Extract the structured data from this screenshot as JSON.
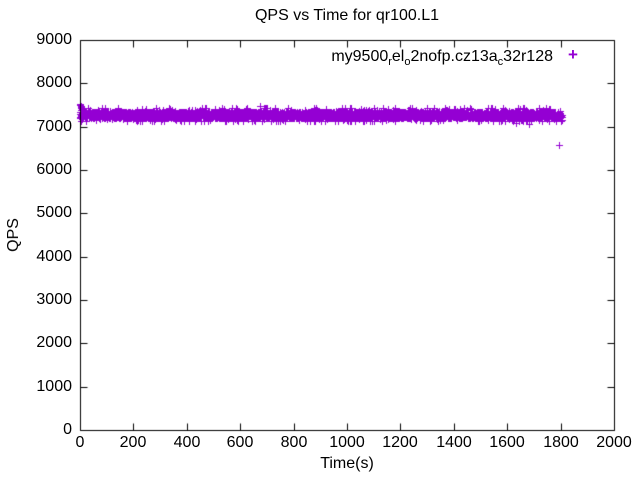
{
  "chart_data": {
    "type": "scatter",
    "title": "QPS vs Time for qr100.L1",
    "xlabel": "Time(s)",
    "ylabel": "QPS",
    "xlim": [
      0,
      2000
    ],
    "ylim": [
      0,
      9000
    ],
    "xticks": [
      0,
      200,
      400,
      600,
      800,
      1000,
      1200,
      1400,
      1600,
      1800,
      2000
    ],
    "yticks": [
      0,
      1000,
      2000,
      3000,
      4000,
      5000,
      6000,
      7000,
      8000,
      9000
    ],
    "grid": false,
    "background_color": "#ffffff",
    "axis_color": "#000000",
    "legend": {
      "position": "top-right-inside",
      "marker_glyph": "+"
    },
    "series": [
      {
        "name": "my9500_rel_o2nofp.cz13a_c32r128",
        "label_segments": [
          {
            "text": "my9500"
          },
          {
            "text": "r",
            "sub": true
          },
          {
            "text": "el"
          },
          {
            "text": "o",
            "sub": true
          },
          {
            "text": "2nofp.cz13a"
          },
          {
            "text": "c",
            "sub": true
          },
          {
            "text": "32r128"
          }
        ],
        "color": "#9400D3",
        "marker": "plus",
        "band": {
          "x_start": 0,
          "x_end": 1805,
          "x_step": 1,
          "samples_per_step": 2,
          "mean_qps": 7270,
          "core_jitter": 80,
          "spike_jitter": 150,
          "spike_probability": 0.18,
          "min_qps": 7120,
          "max_qps": 7430
        },
        "explicit_points": [
          [
            0,
            7500
          ],
          [
            1,
            7530
          ],
          [
            2,
            7460
          ],
          [
            3,
            7480
          ],
          [
            4,
            7430
          ],
          [
            5,
            7455
          ],
          [
            7,
            7410
          ],
          [
            1795,
            6580
          ]
        ],
        "summary": "Throughput holds steady near 7300 QPS from 0 s to ~1800 s with a single low outlier of ~6580 QPS near t=1795 s"
      }
    ]
  }
}
